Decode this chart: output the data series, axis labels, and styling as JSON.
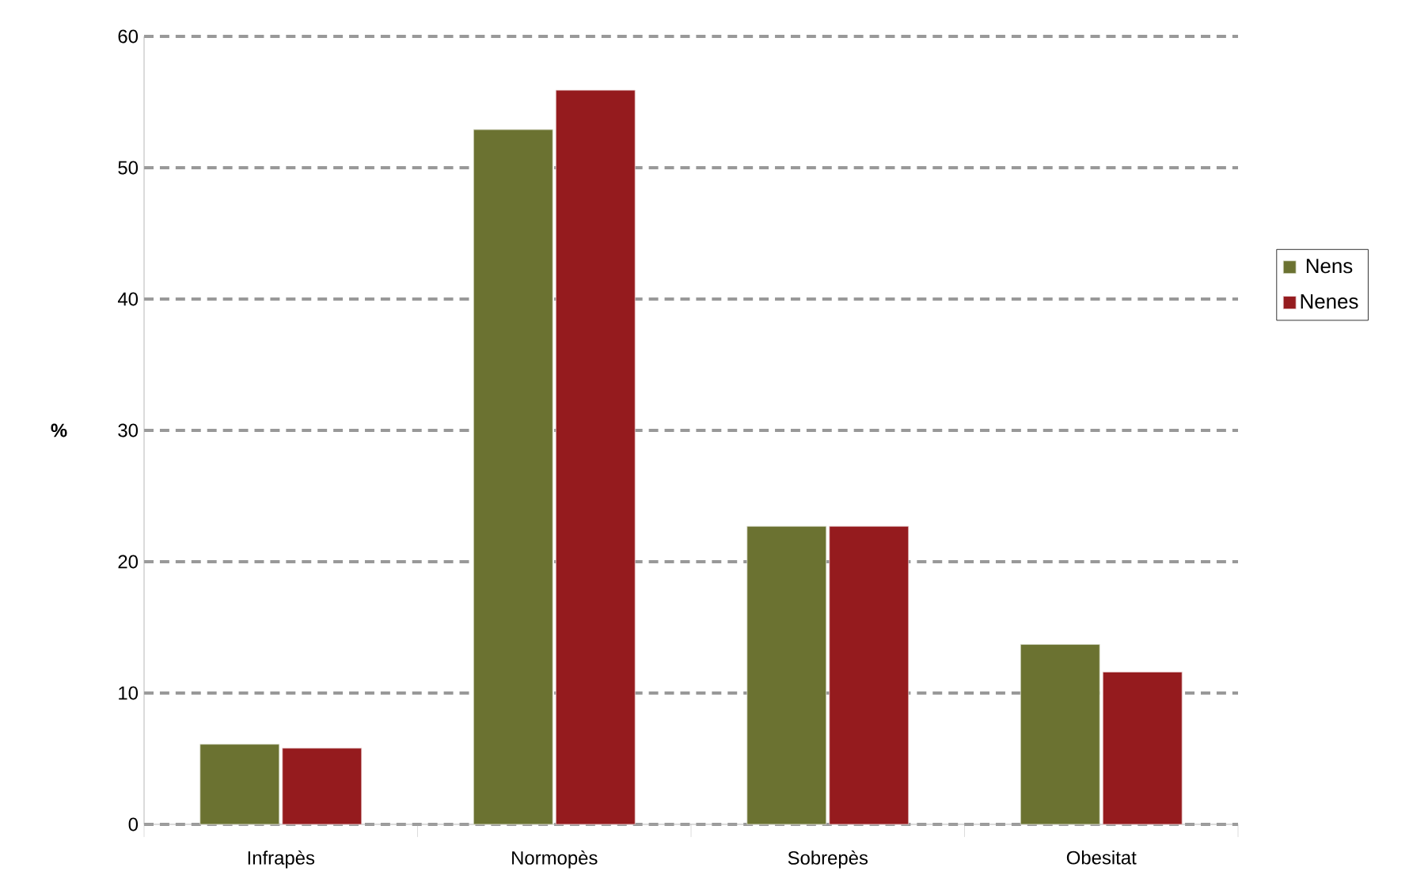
{
  "chart_data": {
    "type": "bar",
    "ylabel": "%",
    "categories": [
      "Infrapès",
      "Normopès",
      "Sobrepès",
      "Obesitat"
    ],
    "series": [
      {
        "name": "Nens",
        "color": "#6b7231",
        "values": [
          6.1,
          52.9,
          22.7,
          13.7
        ]
      },
      {
        "name": "Nenes",
        "color": "#951b1e",
        "values": [
          5.8,
          55.9,
          22.7,
          11.6
        ]
      }
    ],
    "ylim": [
      0,
      60
    ],
    "yticks": [
      0,
      10,
      20,
      30,
      40,
      50,
      60
    ],
    "grid": "y",
    "legend": "right"
  }
}
